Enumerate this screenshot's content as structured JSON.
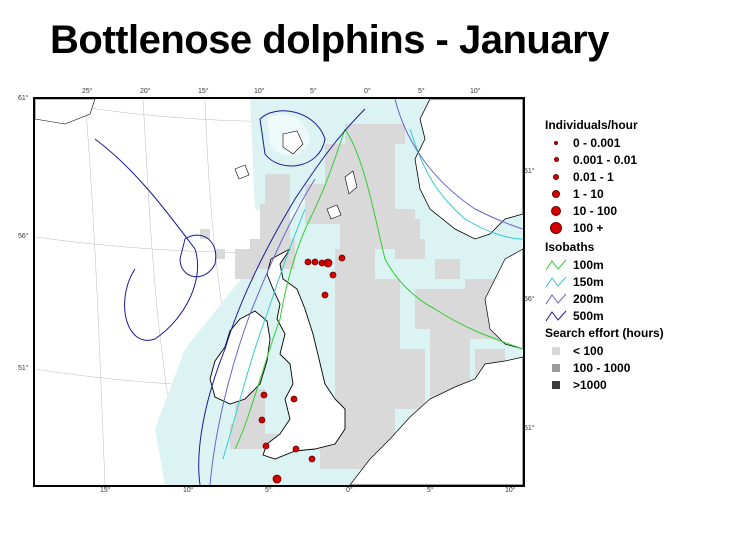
{
  "title": "Bottlenose dolphins - January",
  "map": {
    "top_ticks": [
      "25°",
      "20°",
      "15°",
      "10°",
      "5°",
      "0°",
      "5°",
      "10°"
    ],
    "bottom_ticks": [
      "15°",
      "10°",
      "5°",
      "0°",
      "5°",
      "10°"
    ],
    "left_ticks": [
      "61°",
      "56°",
      "51°"
    ],
    "right_ticks": [
      "61°",
      "56°",
      "51°"
    ],
    "colors": {
      "sea": "#dcf3f3",
      "land": "#ffffff",
      "effort_low": "#d9d9d9",
      "effort_mid": "#9a9a9a",
      "effort_high": "#3c3c3c",
      "iso_100": "#33cc33",
      "iso_150": "#33cccc",
      "iso_200": "#6666cc",
      "iso_500": "#1a1a99",
      "sighting": "#d40000"
    }
  },
  "legend": {
    "individuals_title": "Individuals/hour",
    "individuals": [
      "0 - 0.001",
      "0.001  - 0.01",
      "0.01 - 1",
      "1 - 10",
      "10 - 100",
      "100 +"
    ],
    "isobaths_title": "Isobaths",
    "isobaths": [
      "100m",
      "150m",
      "200m",
      "500m"
    ],
    "effort_title": "Search effort (hours)",
    "effort": [
      "< 100",
      "100 - 1000",
      ">1000"
    ]
  }
}
